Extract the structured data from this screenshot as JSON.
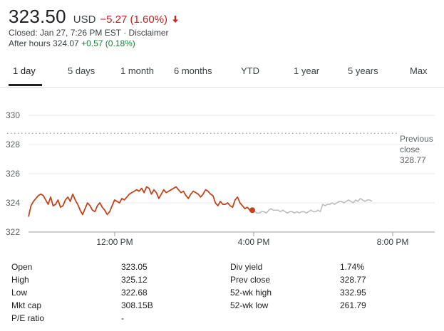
{
  "header": {
    "price": "323.50",
    "currency": "USD",
    "change": "−5.27 (1.60%)",
    "closed_text": "Closed: Jan 27, 7:26 PM EST · Disclaimer",
    "after_hours_label": "After hours 324.07",
    "after_hours_change": "+0.57 (0.18%)"
  },
  "tabs": [
    "1 day",
    "5 days",
    "1 month",
    "6 months",
    "YTD",
    "1 year",
    "5 years",
    "Max"
  ],
  "active_tab": "1 day",
  "colors": {
    "regular": "#c1441c",
    "after_hours": "#bdbdbd",
    "negative": "#c5221f",
    "positive": "#188038"
  },
  "chart_data": {
    "type": "line",
    "ylim": [
      322,
      331
    ],
    "yticks": [
      322,
      324,
      326,
      328,
      330
    ],
    "xticks": [
      "12:00 PM",
      "4:00 PM",
      "8:00 PM"
    ],
    "previous_close": {
      "label_lines": [
        "Previous",
        "close",
        "328.77"
      ],
      "value": 328.77
    },
    "grid": true,
    "series": [
      {
        "values": [
          323.05,
          323.8,
          324.1,
          324.3,
          324.5,
          324.6,
          324.5,
          324.2,
          323.9,
          324.4,
          323.8,
          323.9,
          324.2,
          323.7,
          323.8,
          324.2,
          324.4,
          324.1,
          324.6,
          324.2,
          323.9,
          323.5,
          323.2,
          323.6,
          324.0,
          323.8,
          323.5,
          323.4,
          323.8,
          324.0,
          323.7,
          323.5,
          323.2,
          323.4,
          323.8,
          324.2,
          324.1,
          324.0,
          324.3,
          324.2,
          324.4,
          324.6,
          324.7,
          324.8,
          324.9,
          324.8,
          325.0,
          324.7,
          325.1,
          325.0,
          324.6,
          324.9,
          324.7,
          324.3,
          324.6,
          324.9,
          324.7,
          324.8,
          324.9,
          325.0,
          325.1,
          324.9,
          324.7,
          324.8,
          324.5,
          324.3,
          324.6,
          324.8,
          324.7,
          324.6,
          324.4,
          324.6,
          324.9,
          324.8,
          324.6,
          324.5,
          324.0,
          323.8,
          324.1,
          323.9,
          323.9,
          324.0,
          323.8,
          323.7,
          324.2,
          324.4,
          324.0,
          323.8,
          323.6,
          323.7,
          323.5,
          323.5
        ],
        "marker_end": true
      },
      {
        "values": [
          323.5,
          323.4,
          323.3,
          323.3,
          323.4,
          323.4,
          323.3,
          323.5,
          323.6,
          323.5,
          323.5,
          323.5,
          323.4,
          323.5,
          323.4,
          323.3,
          323.4,
          323.4,
          323.3,
          323.4,
          323.3,
          323.4,
          323.4,
          323.3,
          323.4,
          323.5,
          323.4,
          323.4,
          323.5,
          323.4,
          323.9,
          323.8,
          323.9,
          323.9,
          324.0,
          323.9,
          324.0,
          324.1,
          324.1,
          324.0,
          324.1,
          324.2,
          324.1,
          324.0,
          324.2,
          324.1,
          324.3,
          324.2,
          324.1,
          324.2,
          324.2,
          324.1
        ]
      }
    ]
  },
  "stats": [
    [
      "Open",
      "323.05",
      "Div yield",
      "1.74%"
    ],
    [
      "High",
      "325.12",
      "Prev close",
      "328.77"
    ],
    [
      "Low",
      "322.68",
      "52-wk high",
      "332.95"
    ],
    [
      "Mkt cap",
      "308.15B",
      "52-wk low",
      "261.79"
    ],
    [
      "P/E ratio",
      "-",
      "",
      ""
    ]
  ]
}
